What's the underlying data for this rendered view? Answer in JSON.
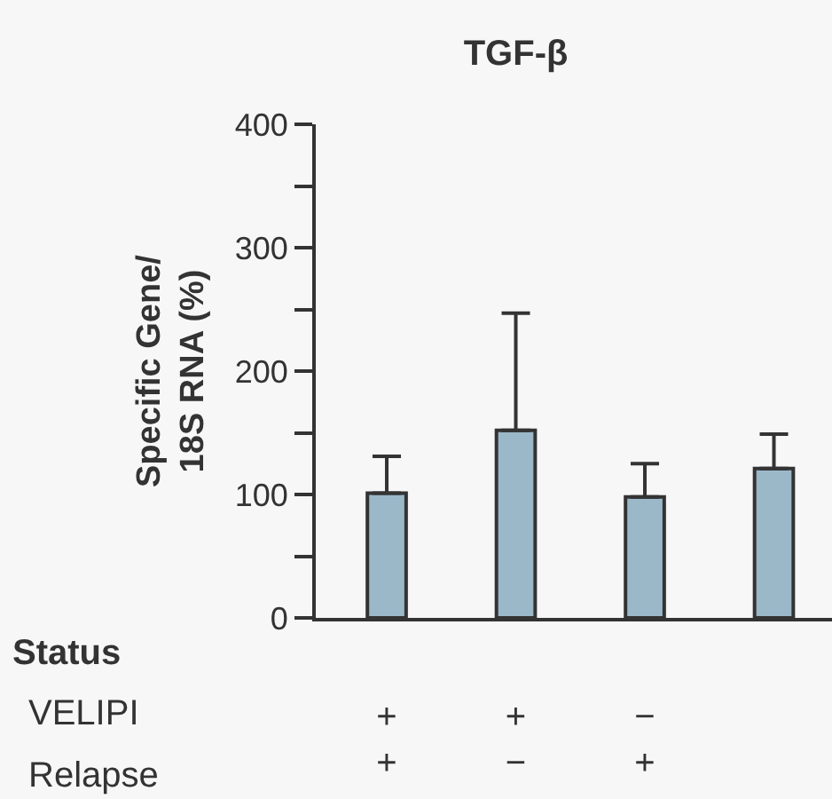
{
  "chart_data": {
    "type": "bar",
    "title": "TGF-β",
    "ylabel": "Specific Gene/\n18S RNA (%)",
    "categories": [
      "+\n+",
      "+\n−",
      "−\n+",
      null
    ],
    "values": [
      101,
      152,
      98,
      121
    ],
    "errors": [
      [
        101,
        131
      ],
      [
        152,
        247
      ],
      [
        98,
        125
      ],
      [
        121,
        149
      ]
    ],
    "color": "#9bb8c9",
    "ylim": [
      0,
      400
    ],
    "yticks": [
      0,
      {
        "value": 50,
        "label": null
      },
      100,
      {
        "value": 150,
        "label": null
      },
      200,
      {
        "value": 250,
        "label": null
      },
      300,
      {
        "value": 350,
        "label": null
      },
      400
    ],
    "annotations": [
      "Status",
      "VELIPI",
      "Relapse"
    ],
    "grid": false,
    "legend": false
  }
}
